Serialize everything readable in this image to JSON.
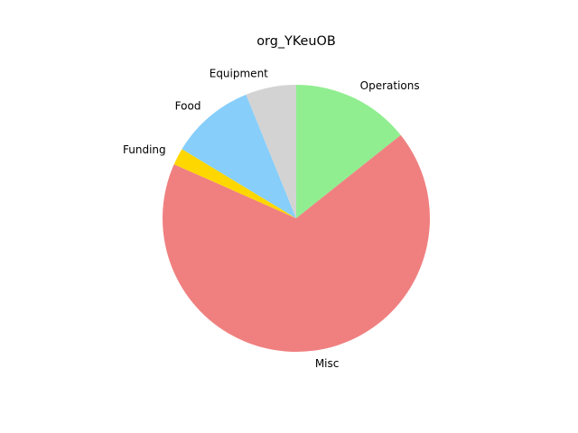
{
  "chart_data": {
    "type": "pie",
    "title": "org_YKeuOB",
    "categories": [
      "Operations",
      "Misc",
      "Funding",
      "Food",
      "Equipment"
    ],
    "values": [
      14,
      66,
      2,
      10,
      6
    ],
    "colors": [
      "#90ee90",
      "#f08080",
      "#ffd700",
      "#87cefa",
      "#d3d3d3"
    ],
    "start_angle_deg": 90,
    "direction": "clockwise",
    "legend": "none"
  }
}
